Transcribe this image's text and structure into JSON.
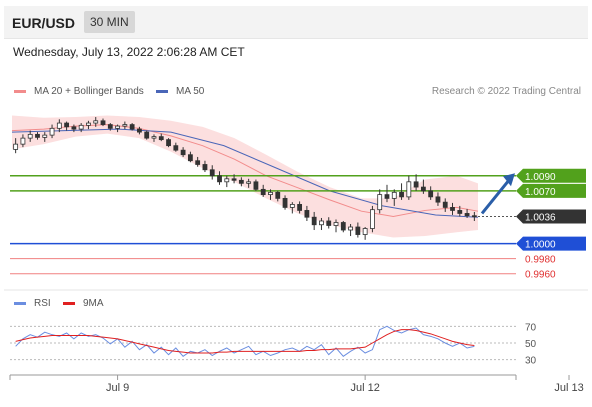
{
  "header": {
    "symbol": "EUR/USD",
    "timeframe": "30 MIN"
  },
  "date_text": "Wednesday, July 13, 2022 2:06:28 AM CET",
  "legend": {
    "ma20": "MA 20 + Bollinger Bands",
    "ma50": "MA 50",
    "credit": "Research © 2022 Trading Central",
    "rsi": "RSI",
    "ma9": "9MA"
  },
  "colors": {
    "ma20": "#f28c8c",
    "bands_fill": "#fbd9d9",
    "ma50": "#4a66b8",
    "resistance": "#52a11c",
    "support": "#1f4fd6",
    "support_light": "#f08080",
    "last_price": "#333333",
    "arrow": "#2a5ea8",
    "rsi": "#6b8ee0",
    "rsi_ma": "#e02020",
    "candle_up": "#ffffff",
    "candle_down": "#333333"
  },
  "chart_data": [
    {
      "type": "candlestick",
      "title": "",
      "x_tick_labels": [
        "Jul 9",
        "Jul 12",
        "Jul 13"
      ],
      "x_tick_positions": [
        14,
        48,
        76
      ],
      "ylim": [
        0.9945,
        1.018
      ],
      "series": [
        {
          "name": "MA 20",
          "x": [
            0,
            6,
            12,
            18,
            24,
            30,
            36,
            42,
            48,
            54,
            60,
            66,
            72,
            78,
            84,
            88
          ],
          "values": [
            1.015,
            1.0152,
            1.0156,
            1.0158,
            1.0153,
            1.0143,
            1.013,
            1.0112,
            1.009,
            1.0074,
            1.0058,
            1.0043,
            1.0036,
            1.0044,
            1.0048,
            1.0043
          ]
        },
        {
          "name": "Bollinger Upper",
          "x": [
            0,
            6,
            12,
            18,
            24,
            30,
            36,
            42,
            48,
            54,
            60,
            66,
            72,
            78,
            84,
            88
          ],
          "values": [
            1.017,
            1.0167,
            1.0168,
            1.017,
            1.0168,
            1.0163,
            1.0155,
            1.014,
            1.0118,
            1.0095,
            1.0075,
            1.006,
            1.006,
            1.0085,
            1.009,
            1.008
          ]
        },
        {
          "name": "Bollinger Lower",
          "x": [
            0,
            6,
            12,
            18,
            24,
            30,
            36,
            42,
            48,
            54,
            60,
            66,
            72,
            78,
            84,
            88
          ],
          "values": [
            1.0125,
            1.0132,
            1.0142,
            1.0146,
            1.014,
            1.0122,
            1.01,
            1.0082,
            1.006,
            1.004,
            1.0025,
            1.0015,
            1.0008,
            1.001,
            1.0015,
            1.0018
          ]
        },
        {
          "name": "MA 50",
          "x": [
            0,
            10,
            20,
            30,
            40,
            50,
            60,
            70,
            80,
            88
          ],
          "values": [
            1.0148,
            1.015,
            1.0152,
            1.0148,
            1.013,
            1.01,
            1.007,
            1.005,
            1.0038,
            1.0035
          ]
        }
      ],
      "candles": [
        [
          1.0125,
          1.014,
          1.012,
          1.0132
        ],
        [
          1.0132,
          1.0145,
          1.0128,
          1.014
        ],
        [
          1.014,
          1.015,
          1.0135,
          1.0145
        ],
        [
          1.0145,
          1.0148,
          1.0138,
          1.0141
        ],
        [
          1.0141,
          1.0148,
          1.0135,
          1.0144
        ],
        [
          1.0144,
          1.0158,
          1.014,
          1.0153
        ],
        [
          1.0153,
          1.0165,
          1.0148,
          1.016
        ],
        [
          1.016,
          1.0162,
          1.015,
          1.0155
        ],
        [
          1.0155,
          1.0158,
          1.0148,
          1.0152
        ],
        [
          1.0152,
          1.016,
          1.0148,
          1.0157
        ],
        [
          1.0157,
          1.0163,
          1.0152,
          1.016
        ],
        [
          1.016,
          1.0168,
          1.0155,
          1.0163
        ],
        [
          1.0163,
          1.0166,
          1.0156,
          1.0158
        ],
        [
          1.0158,
          1.016,
          1.015,
          1.0153
        ],
        [
          1.0153,
          1.0158,
          1.0148,
          1.0156
        ],
        [
          1.0156,
          1.0162,
          1.0152,
          1.0158
        ],
        [
          1.0158,
          1.016,
          1.015,
          1.0152
        ],
        [
          1.0152,
          1.0155,
          1.0145,
          1.0148
        ],
        [
          1.0148,
          1.015,
          1.0138,
          1.014
        ],
        [
          1.014,
          1.0145,
          1.0135,
          1.0142
        ],
        [
          1.0142,
          1.0146,
          1.0136,
          1.0138
        ],
        [
          1.0138,
          1.014,
          1.0128,
          1.013
        ],
        [
          1.013,
          1.0134,
          1.0122,
          1.0124
        ],
        [
          1.0124,
          1.0128,
          1.0115,
          1.0118
        ],
        [
          1.0118,
          1.0122,
          1.0108,
          1.011
        ],
        [
          1.011,
          1.0115,
          1.0102,
          1.0105
        ],
        [
          1.0105,
          1.011,
          1.0095,
          1.0098
        ],
        [
          1.0098,
          1.0104,
          1.0085,
          1.009
        ],
        [
          1.009,
          1.0096,
          1.0078,
          1.0082
        ],
        [
          1.0082,
          1.009,
          1.0075,
          1.0086
        ],
        [
          1.0086,
          1.0092,
          1.008,
          1.0084
        ],
        [
          1.0084,
          1.0088,
          1.0076,
          1.008
        ],
        [
          1.008,
          1.0086,
          1.0074,
          1.0082
        ],
        [
          1.0082,
          1.0085,
          1.007,
          1.0072
        ],
        [
          1.0072,
          1.0078,
          1.0062,
          1.0065
        ],
        [
          1.0065,
          1.0072,
          1.0058,
          1.0068
        ],
        [
          1.0068,
          1.007,
          1.0056,
          1.006
        ],
        [
          1.006,
          1.0064,
          1.0045,
          1.0048
        ],
        [
          1.0048,
          1.0055,
          1.004,
          1.0052
        ],
        [
          1.0052,
          1.0056,
          1.004,
          1.0044
        ],
        [
          1.0044,
          1.005,
          1.003,
          1.0035
        ],
        [
          1.0035,
          1.0042,
          1.0018,
          1.0025
        ],
        [
          1.0025,
          1.0034,
          1.0018,
          1.003
        ],
        [
          1.003,
          1.0035,
          1.002,
          1.0024
        ],
        [
          1.0024,
          1.0032,
          1.0015,
          1.0028
        ],
        [
          1.0028,
          1.003,
          1.0015,
          1.0018
        ],
        [
          1.0018,
          1.0026,
          1.001,
          1.0022
        ],
        [
          1.0022,
          1.0028,
          1.0008,
          1.0012
        ],
        [
          1.0012,
          1.0022,
          1.0005,
          1.002
        ],
        [
          1.002,
          1.005,
          1.0015,
          1.0045
        ],
        [
          1.0045,
          1.0072,
          1.004,
          1.0065
        ],
        [
          1.0065,
          1.0078,
          1.0055,
          1.006
        ],
        [
          1.006,
          1.0072,
          1.005,
          1.0068
        ],
        [
          1.0068,
          1.008,
          1.0058,
          1.0062
        ],
        [
          1.0062,
          1.009,
          1.0058,
          1.0082
        ],
        [
          1.0082,
          1.0092,
          1.007,
          1.0075
        ],
        [
          1.0075,
          1.0085,
          1.0066,
          1.007
        ],
        [
          1.007,
          1.0076,
          1.0058,
          1.0062
        ],
        [
          1.0062,
          1.0068,
          1.005,
          1.0055
        ],
        [
          1.0055,
          1.006,
          1.0042,
          1.0048
        ],
        [
          1.0048,
          1.0054,
          1.0038,
          1.0044
        ],
        [
          1.0044,
          1.005,
          1.0036,
          1.004
        ],
        [
          1.004,
          1.0046,
          1.0034,
          1.0037
        ],
        [
          1.0037,
          1.0042,
          1.003,
          1.0036
        ]
      ],
      "levels": [
        {
          "value": 1.009,
          "label": "1.0090",
          "kind": "resistance"
        },
        {
          "value": 1.007,
          "label": "1.0070",
          "kind": "resistance"
        },
        {
          "value": 1.0036,
          "label": "1.0036",
          "kind": "last"
        },
        {
          "value": 1.0,
          "label": "1.0000",
          "kind": "support"
        },
        {
          "value": 0.998,
          "label": "0.9980",
          "kind": "support_light"
        },
        {
          "value": 0.996,
          "label": "0.9960",
          "kind": "support_light"
        }
      ],
      "arrow": {
        "from": 1.004,
        "to": 1.0088
      }
    },
    {
      "type": "line",
      "title": "RSI",
      "ylim": [
        20,
        80
      ],
      "y_ticks": [
        70,
        50,
        30
      ],
      "series": [
        {
          "name": "RSI",
          "values": [
            46,
            55,
            60,
            57,
            63,
            60,
            58,
            62,
            55,
            62,
            58,
            60,
            56,
            49,
            55,
            45,
            52,
            42,
            48,
            38,
            45,
            36,
            44,
            34,
            40,
            38,
            42,
            35,
            40,
            44,
            38,
            42,
            46,
            36,
            40,
            35,
            38,
            42,
            44,
            40,
            46,
            42,
            48,
            36,
            44,
            34,
            40,
            45,
            38,
            42,
            66,
            70,
            65,
            62,
            66,
            68,
            60,
            58,
            55,
            50,
            46,
            50,
            44,
            46
          ]
        },
        {
          "name": "9MA",
          "values": [
            52,
            54,
            56,
            57,
            58,
            59,
            59,
            59,
            59,
            59,
            59,
            58,
            57,
            56,
            55,
            53,
            51,
            49,
            47,
            45,
            43,
            41,
            40,
            39,
            38,
            38,
            38,
            38,
            39,
            39,
            40,
            40,
            40,
            40,
            40,
            40,
            40,
            40,
            40,
            40,
            41,
            41,
            42,
            42,
            43,
            43,
            43,
            44,
            45,
            50,
            55,
            60,
            64,
            66,
            66,
            65,
            63,
            61,
            58,
            55,
            52,
            50,
            48,
            47
          ]
        }
      ]
    }
  ]
}
